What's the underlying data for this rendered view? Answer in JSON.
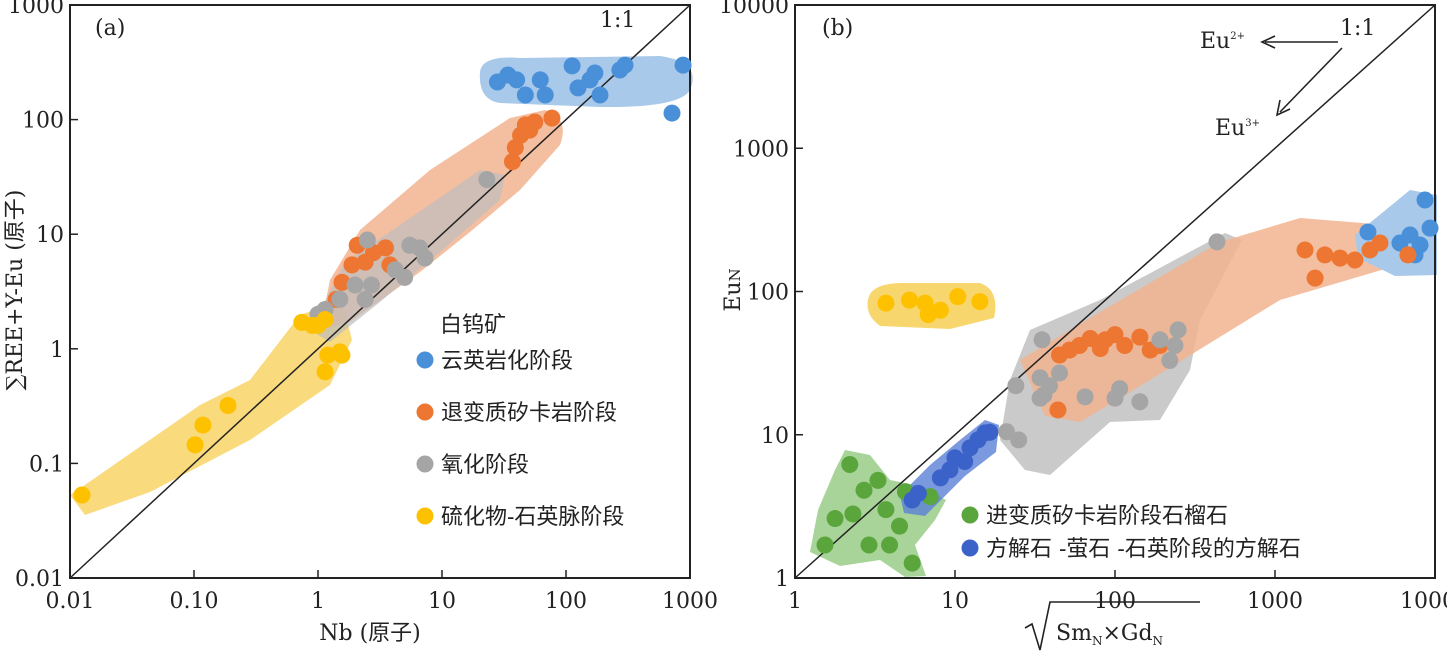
{
  "chart_data": [
    {
      "type": "scatter",
      "panel_label": "(a)",
      "line_label": "1:1",
      "x_label": "Nb (原子)",
      "y_label": "∑REE+Y-Eu (原子)",
      "legend_title": "白钨矿",
      "log_x": true,
      "log_y": true,
      "xlim": [
        0.01,
        1000
      ],
      "ylim": [
        0.01,
        1000
      ],
      "xticks": [
        0.01,
        {
          "value": 0.1,
          "label": "0.10"
        },
        1,
        10,
        100,
        1000
      ],
      "yticks": [
        0.01,
        0.1,
        1,
        10,
        100,
        1000
      ],
      "series": [
        {
          "name": "云英岩化阶段",
          "color": "#4a90d9",
          "x": [
            28,
            34,
            40,
            47,
            62,
            68,
            112,
            125,
            156,
            171,
            188,
            272,
            299,
            716,
            879
          ],
          "y": [
            213,
            245,
            222,
            164,
            222,
            164,
            294,
            189,
            222,
            255,
            164,
            271,
            299,
            114,
            299
          ]
        },
        {
          "name": "退变质矽卡岩阶段",
          "color": "#ec7632",
          "x": [
            1.4,
            1.56,
            1.88,
            2.07,
            2.4,
            2.8,
            3.5,
            3.8,
            37,
            39,
            43,
            47,
            51,
            56,
            77
          ],
          "y": [
            2.7,
            3.8,
            5.4,
            8.0,
            5.7,
            6.9,
            7.6,
            5.4,
            43,
            57,
            73,
            90,
            81,
            95,
            103
          ]
        },
        {
          "name": "氧化阶段",
          "color": "#a5a5a5",
          "x": [
            1.0,
            1.14,
            1.5,
            1.99,
            2.4,
            2.5,
            2.7,
            4.2,
            5.0,
            5.5,
            6.6,
            7.3,
            23
          ],
          "y": [
            2.0,
            2.2,
            2.7,
            3.6,
            2.7,
            8.9,
            3.6,
            4.9,
            4.2,
            8.0,
            7.6,
            6.2,
            30
          ]
        },
        {
          "name": "硫化物-石英脉阶段",
          "color": "#fdc100",
          "x": [
            0.0125,
            0.102,
            0.118,
            0.188,
            0.74,
            0.9,
            1.0,
            1.14,
            1.2,
            1.5,
            1.56,
            1.14
          ],
          "y": [
            0.053,
            0.145,
            0.216,
            0.32,
            1.7,
            1.6,
            1.6,
            1.8,
            0.88,
            0.94,
            0.88,
            0.63
          ]
        }
      ]
    },
    {
      "type": "scatter",
      "panel_label": "(b)",
      "line_label": "1:1",
      "x_label_parts": [
        "Sm",
        "N",
        "×Gd",
        "N"
      ],
      "y_label": "Eu",
      "y_label_sub": "N",
      "eu2_label": "Eu",
      "eu2_sup": "2+",
      "eu3_label": "Eu",
      "eu3_sup": "3+",
      "log_x": true,
      "log_y": true,
      "xlim": [
        1,
        10000
      ],
      "ylim": [
        1,
        10000
      ],
      "xticks": [
        1,
        10,
        100,
        1000,
        10000
      ],
      "yticks": [
        1,
        10,
        100,
        1000,
        10000
      ],
      "series": [
        {
          "color": "#4a90d9",
          "x": [
            3810,
            6040,
            6980,
            7500,
            8060,
            8660,
            9310
          ],
          "y": [
            260,
            218,
            248,
            180,
            211,
            435,
            277
          ]
        },
        {
          "color": "#ec7632",
          "x": [
            45,
            52,
            60,
            70,
            81,
            87,
            100,
            115,
            143,
            166,
            191,
            44,
            1540,
            1780,
            2050,
            2550,
            3160,
            3920,
            4530,
            6770
          ],
          "y": [
            36,
            39,
            42,
            47,
            40,
            46,
            50,
            42,
            48,
            39,
            42,
            14.9,
            195,
            124,
            180,
            171,
            166,
            195,
            218,
            180
          ]
        },
        {
          "color": "#a5a5a5",
          "x": [
            35,
            24,
            34,
            21,
            25,
            34,
            36,
            45,
            65,
            100,
            107,
            143,
            191,
            237,
            248,
            220,
            434,
            39
          ],
          "y": [
            46,
            22,
            25,
            10.5,
            9.2,
            18,
            19,
            27,
            18.4,
            18,
            21,
            17,
            46,
            42,
            54,
            33,
            222,
            22
          ]
        },
        {
          "color": "#fdc100",
          "x": [
            3.7,
            5.2,
            6.5,
            6.8,
            8.1,
            10.4,
            14.3
          ],
          "y": [
            83,
            87,
            83,
            69,
            74,
            92,
            85
          ]
        },
        {
          "name": "进变质矽卡岩阶段石榴石",
          "color": "#5aa63c",
          "x": [
            1.54,
            1.78,
            2.2,
            2.3,
            2.7,
            2.9,
            3.3,
            3.7,
            3.9,
            4.5,
            4.9,
            5.4,
            7.0
          ],
          "y": [
            1.7,
            2.6,
            6.2,
            2.8,
            4.1,
            1.7,
            4.8,
            3.0,
            1.7,
            2.3,
            4.0,
            1.27,
            3.7
          ]
        },
        {
          "name": "方解石 -萤石 -石英阶段的方解石",
          "color": "#3a62c8",
          "x": [
            5.4,
            5.9,
            8.1,
            9.3,
            10,
            11.5,
            12.4,
            13.9,
            15.4,
            16.5
          ],
          "y": [
            3.5,
            3.9,
            5.0,
            5.7,
            6.9,
            6.5,
            8.1,
            9.2,
            10.3,
            10.4
          ]
        }
      ]
    }
  ]
}
